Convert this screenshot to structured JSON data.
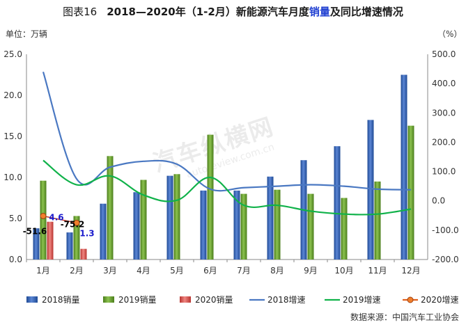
{
  "title": {
    "label": "图表16",
    "main_before": "2018—2020年（1-2月）新能源汽车月度",
    "highlight": "销量",
    "main_after": "及同比增速情况"
  },
  "unit_left": "单位：万辆",
  "unit_right": "（%）",
  "source": "数据来源：中国汽车工业协会",
  "watermark": {
    "logo": "汽车纵横网",
    "url": "autoreview.com.cn"
  },
  "colors": {
    "s2018": "#3b66b5",
    "s2019": "#6aa233",
    "s2020": "#d9534f",
    "l2018": "#4a78c2",
    "l2019": "#10b24a",
    "l2020": "#e0601e",
    "label2019": "#1a1acc",
    "label2020": "#1a1acc"
  },
  "chart_data": {
    "type": "bar",
    "categories": [
      "1月",
      "2月",
      "3月",
      "4月",
      "5月",
      "6月",
      "7月",
      "8月",
      "9月",
      "10月",
      "11月",
      "12月"
    ],
    "series": [
      {
        "name": "2018销量",
        "kind": "bar",
        "axis": "left",
        "values": [
          3.8,
          3.3,
          6.8,
          8.2,
          10.2,
          8.4,
          8.4,
          10.1,
          12.1,
          13.8,
          17.0,
          22.5
        ]
      },
      {
        "name": "2019销量",
        "kind": "bar",
        "axis": "left",
        "values": [
          9.6,
          5.3,
          12.6,
          9.7,
          10.4,
          15.2,
          8.0,
          8.5,
          8.0,
          7.5,
          9.5,
          16.3
        ]
      },
      {
        "name": "2020销量",
        "kind": "bar",
        "axis": "left",
        "values": [
          4.6,
          1.3,
          null,
          null,
          null,
          null,
          null,
          null,
          null,
          null,
          null,
          null
        ]
      },
      {
        "name": "2018增速",
        "kind": "line",
        "axis": "right",
        "values": [
          440,
          75,
          115,
          135,
          125,
          40,
          45,
          50,
          55,
          50,
          40,
          38
        ]
      },
      {
        "name": "2019增速",
        "kind": "line",
        "axis": "right",
        "values": [
          138,
          55,
          85,
          20,
          2,
          80,
          -15,
          -15,
          -35,
          -45,
          -45,
          -28
        ]
      },
      {
        "name": "2020增速",
        "kind": "line",
        "axis": "right",
        "values": [
          -51.6,
          -75.2,
          null,
          null,
          null,
          null,
          null,
          null,
          null,
          null,
          null,
          null
        ]
      }
    ],
    "data_labels": [
      {
        "series": "2020销量",
        "index": 0,
        "text": "4.6"
      },
      {
        "series": "2020销量",
        "index": 1,
        "text": "1.3"
      },
      {
        "series": "2020增速",
        "index": 0,
        "text": "-51.6"
      },
      {
        "series": "2020增速",
        "index": 1,
        "text": "-75.2"
      }
    ],
    "y_left": {
      "min": 0,
      "max": 25,
      "step": 5,
      "ticks": [
        "0.0",
        "5.0",
        "10.0",
        "15.0",
        "20.0",
        "25.0"
      ]
    },
    "y_right": {
      "min": -200,
      "max": 500,
      "step": 100,
      "ticks": [
        "-200.0",
        "-100.0",
        "0.0",
        "100.0",
        "200.0",
        "300.0",
        "400.0",
        "500.0"
      ]
    },
    "grid": false,
    "legend_position": "bottom"
  }
}
